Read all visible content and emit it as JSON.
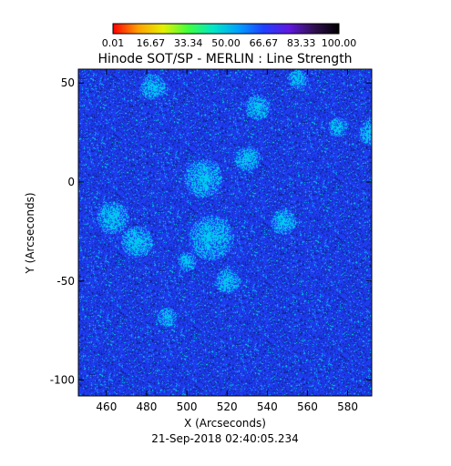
{
  "chart_data": {
    "type": "heatmap",
    "title": "Hinode SOT/SP - MERLIN : Line Strength",
    "xlabel": "X (Arcseconds)",
    "ylabel": "Y (Arcseconds)",
    "date_label": "21-Sep-2018 02:40:05.234",
    "xlim": [
      446,
      592
    ],
    "ylim": [
      -108,
      57
    ],
    "x_ticks": [
      460,
      480,
      500,
      520,
      540,
      560,
      580
    ],
    "y_ticks": [
      50,
      0,
      -50,
      -100
    ],
    "colorbar": {
      "range": [
        0.01,
        100.0
      ],
      "tick_labels": [
        "0.01",
        "16.67",
        "33.34",
        "50.00",
        "66.67",
        "83.33",
        "100.00"
      ],
      "colors": [
        "#ff0000",
        "#ffa000",
        "#e6f000",
        "#40ff40",
        "#00e6c8",
        "#00a0ff",
        "#2040ff",
        "#6018e0",
        "#301050",
        "#000000"
      ]
    },
    "field": {
      "dominant_color": "#1f3cf0",
      "secondary_colors": [
        "#00c8f0",
        "#1428a0",
        "#0f1e8c",
        "#00e6d2"
      ],
      "bright_regions": [
        {
          "x": 512,
          "y": -28,
          "r": 7
        },
        {
          "x": 508,
          "y": 2,
          "r": 6
        },
        {
          "x": 475,
          "y": -30,
          "r": 5
        },
        {
          "x": 483,
          "y": 48,
          "r": 4
        },
        {
          "x": 535,
          "y": 38,
          "r": 4
        },
        {
          "x": 575,
          "y": 28,
          "r": 3
        },
        {
          "x": 592,
          "y": 25,
          "r": 4
        },
        {
          "x": 463,
          "y": -18,
          "r": 5
        },
        {
          "x": 548,
          "y": -20,
          "r": 4
        },
        {
          "x": 490,
          "y": -68,
          "r": 3
        },
        {
          "x": 555,
          "y": 52,
          "r": 3
        },
        {
          "x": 520,
          "y": -50,
          "r": 4
        },
        {
          "x": 500,
          "y": -40,
          "r": 3
        },
        {
          "x": 530,
          "y": 12,
          "r": 4
        }
      ]
    }
  }
}
